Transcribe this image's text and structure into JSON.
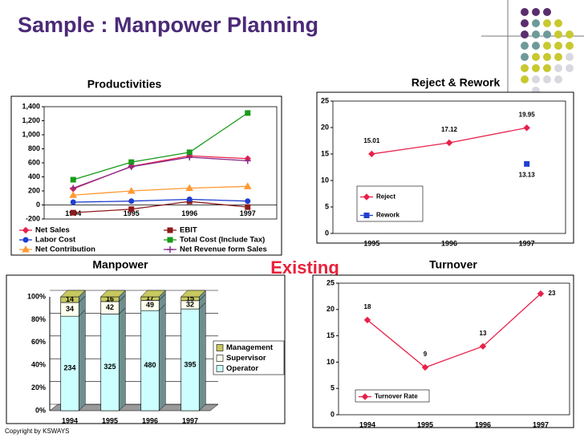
{
  "title": "Sample : Manpower Planning",
  "annotations": [
    "Existing",
    "Copyright by KSWAYS"
  ],
  "chart_data": [
    {
      "type": "line",
      "title": "Productivities",
      "categories": [
        "1994",
        "1995",
        "1996",
        "1997"
      ],
      "ylim": [
        -200,
        1400
      ],
      "yticks": [
        -200,
        0,
        200,
        400,
        600,
        800,
        {
          "value": 1000,
          "label": "1,000"
        },
        {
          "value": 1200,
          "label": "1,200"
        },
        {
          "value": 1400,
          "label": "1,400"
        }
      ],
      "grid": false,
      "legend": "bottom",
      "series": [
        {
          "name": "Net Sales",
          "color": "#e8204a",
          "marker": "diamond",
          "values": [
            230,
            550,
            700,
            660
          ]
        },
        {
          "name": "EBIT",
          "color": "#8b1a1a",
          "marker": "square",
          "values": [
            -110,
            -60,
            50,
            -30
          ]
        },
        {
          "name": "Labor Cost",
          "color": "#1f3fd0",
          "marker": "circle",
          "values": [
            40,
            55,
            80,
            55
          ]
        },
        {
          "name": "Total Cost (Include Tax)",
          "color": "#1a9a1a",
          "marker": "square",
          "values": [
            360,
            610,
            750,
            1310
          ]
        },
        {
          "name": "Net Contribution",
          "color": "#ff9933",
          "marker": "triangle",
          "values": [
            140,
            200,
            240,
            265
          ]
        },
        {
          "name": "Net Revenue form Sales",
          "color": "#8a2a8a",
          "marker": "plus",
          "values": [
            240,
            545,
            680,
            630
          ]
        }
      ]
    },
    {
      "type": "line",
      "title": "Reject & Rework",
      "categories": [
        "1995",
        "1996",
        "1997"
      ],
      "ylim": [
        0,
        25
      ],
      "yticks": [
        0,
        5,
        10,
        15,
        20,
        25
      ],
      "grid": false,
      "legend": "inside",
      "series": [
        {
          "name": "Reject",
          "color": "#e8204a",
          "marker": "diamond",
          "values": [
            15.01,
            17.12,
            19.95
          ]
        },
        {
          "name": "Rework",
          "color": "#1f3fd0",
          "marker": "square",
          "values": [
            null,
            null,
            13.13
          ]
        }
      ]
    },
    {
      "type": "bar",
      "stacking": "percent",
      "title": "Manpower",
      "categories": [
        "1994",
        "1995",
        "1996",
        "1997"
      ],
      "ylim": [
        0,
        100
      ],
      "yticks": [
        {
          "value": 0,
          "label": "0%"
        },
        {
          "value": 20,
          "label": "20%"
        },
        {
          "value": 40,
          "label": "40%"
        },
        {
          "value": 60,
          "label": "60%"
        },
        {
          "value": 80,
          "label": "80%"
        },
        {
          "value": 100,
          "label": "100%"
        }
      ],
      "grid": true,
      "legend": "right",
      "series": [
        {
          "name": "Operator",
          "color": "#ccffff",
          "values": [
            234,
            325,
            480,
            395
          ]
        },
        {
          "name": "Supervisor",
          "color": "#ffffee",
          "values": [
            34,
            42,
            49,
            32
          ]
        },
        {
          "name": "Management",
          "color": "#c8c860",
          "values": [
            14,
            16,
            17,
            15
          ]
        }
      ]
    },
    {
      "type": "line",
      "title": "Turnover",
      "categories": [
        "1994",
        "1995",
        "1996",
        "1997"
      ],
      "ylim": [
        0,
        25
      ],
      "yticks": [
        0,
        5,
        10,
        15,
        20,
        25
      ],
      "grid": false,
      "legend": "inside",
      "series": [
        {
          "name": "Turnover Rate",
          "color": "#e8204a",
          "marker": "diamond",
          "values": [
            18,
            9,
            13,
            23
          ]
        }
      ]
    }
  ]
}
